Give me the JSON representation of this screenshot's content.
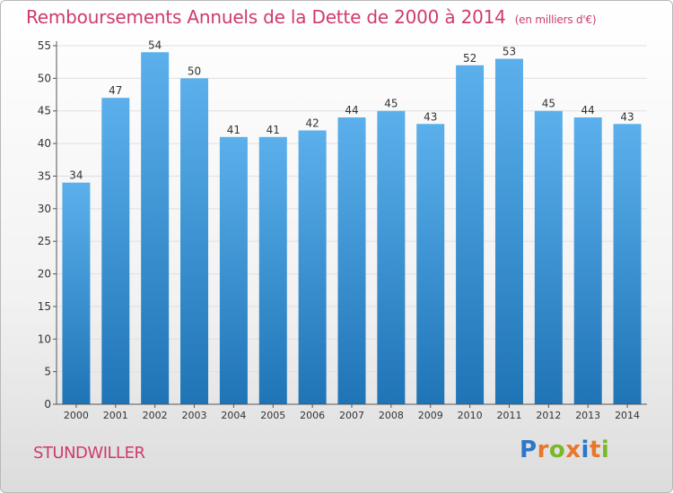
{
  "header": {
    "title": "Remboursements Annuels de la Dette de 2000 à 2014",
    "unit": "(en milliers d'€)"
  },
  "footer": {
    "commune": "STUNDWILLER",
    "logo_letters": [
      {
        "char": "P",
        "color": "#2b77c9"
      },
      {
        "char": "r",
        "color": "#e8762b"
      },
      {
        "char": "o",
        "color": "#7bb829"
      },
      {
        "char": "x",
        "color": "#e8762b"
      },
      {
        "char": "i",
        "color": "#2b77c9"
      },
      {
        "char": "t",
        "color": "#e8762b"
      },
      {
        "char": "i",
        "color": "#7bb829"
      }
    ]
  },
  "colors": {
    "bar_top": "#5bb0ec",
    "bar_bottom": "#1f74b6",
    "axis_text": "#333333",
    "grid": "#e0e0e0",
    "accent": "#cf3a6d"
  },
  "chart_data": {
    "type": "bar",
    "title": "Remboursements Annuels de la Dette de 2000 à 2014",
    "subtitle": "(en milliers d'€)",
    "categories": [
      "2000",
      "2001",
      "2002",
      "2003",
      "2004",
      "2005",
      "2006",
      "2007",
      "2008",
      "2009",
      "2010",
      "2011",
      "2012",
      "2013",
      "2014"
    ],
    "values": [
      34,
      47,
      54,
      50,
      41,
      41,
      42,
      44,
      45,
      43,
      52,
      53,
      45,
      44,
      43
    ],
    "ylim": [
      0,
      55
    ],
    "yticks": [
      0,
      5,
      10,
      15,
      20,
      25,
      30,
      35,
      40,
      45,
      50,
      55
    ],
    "grid": true,
    "data_labels": true
  }
}
